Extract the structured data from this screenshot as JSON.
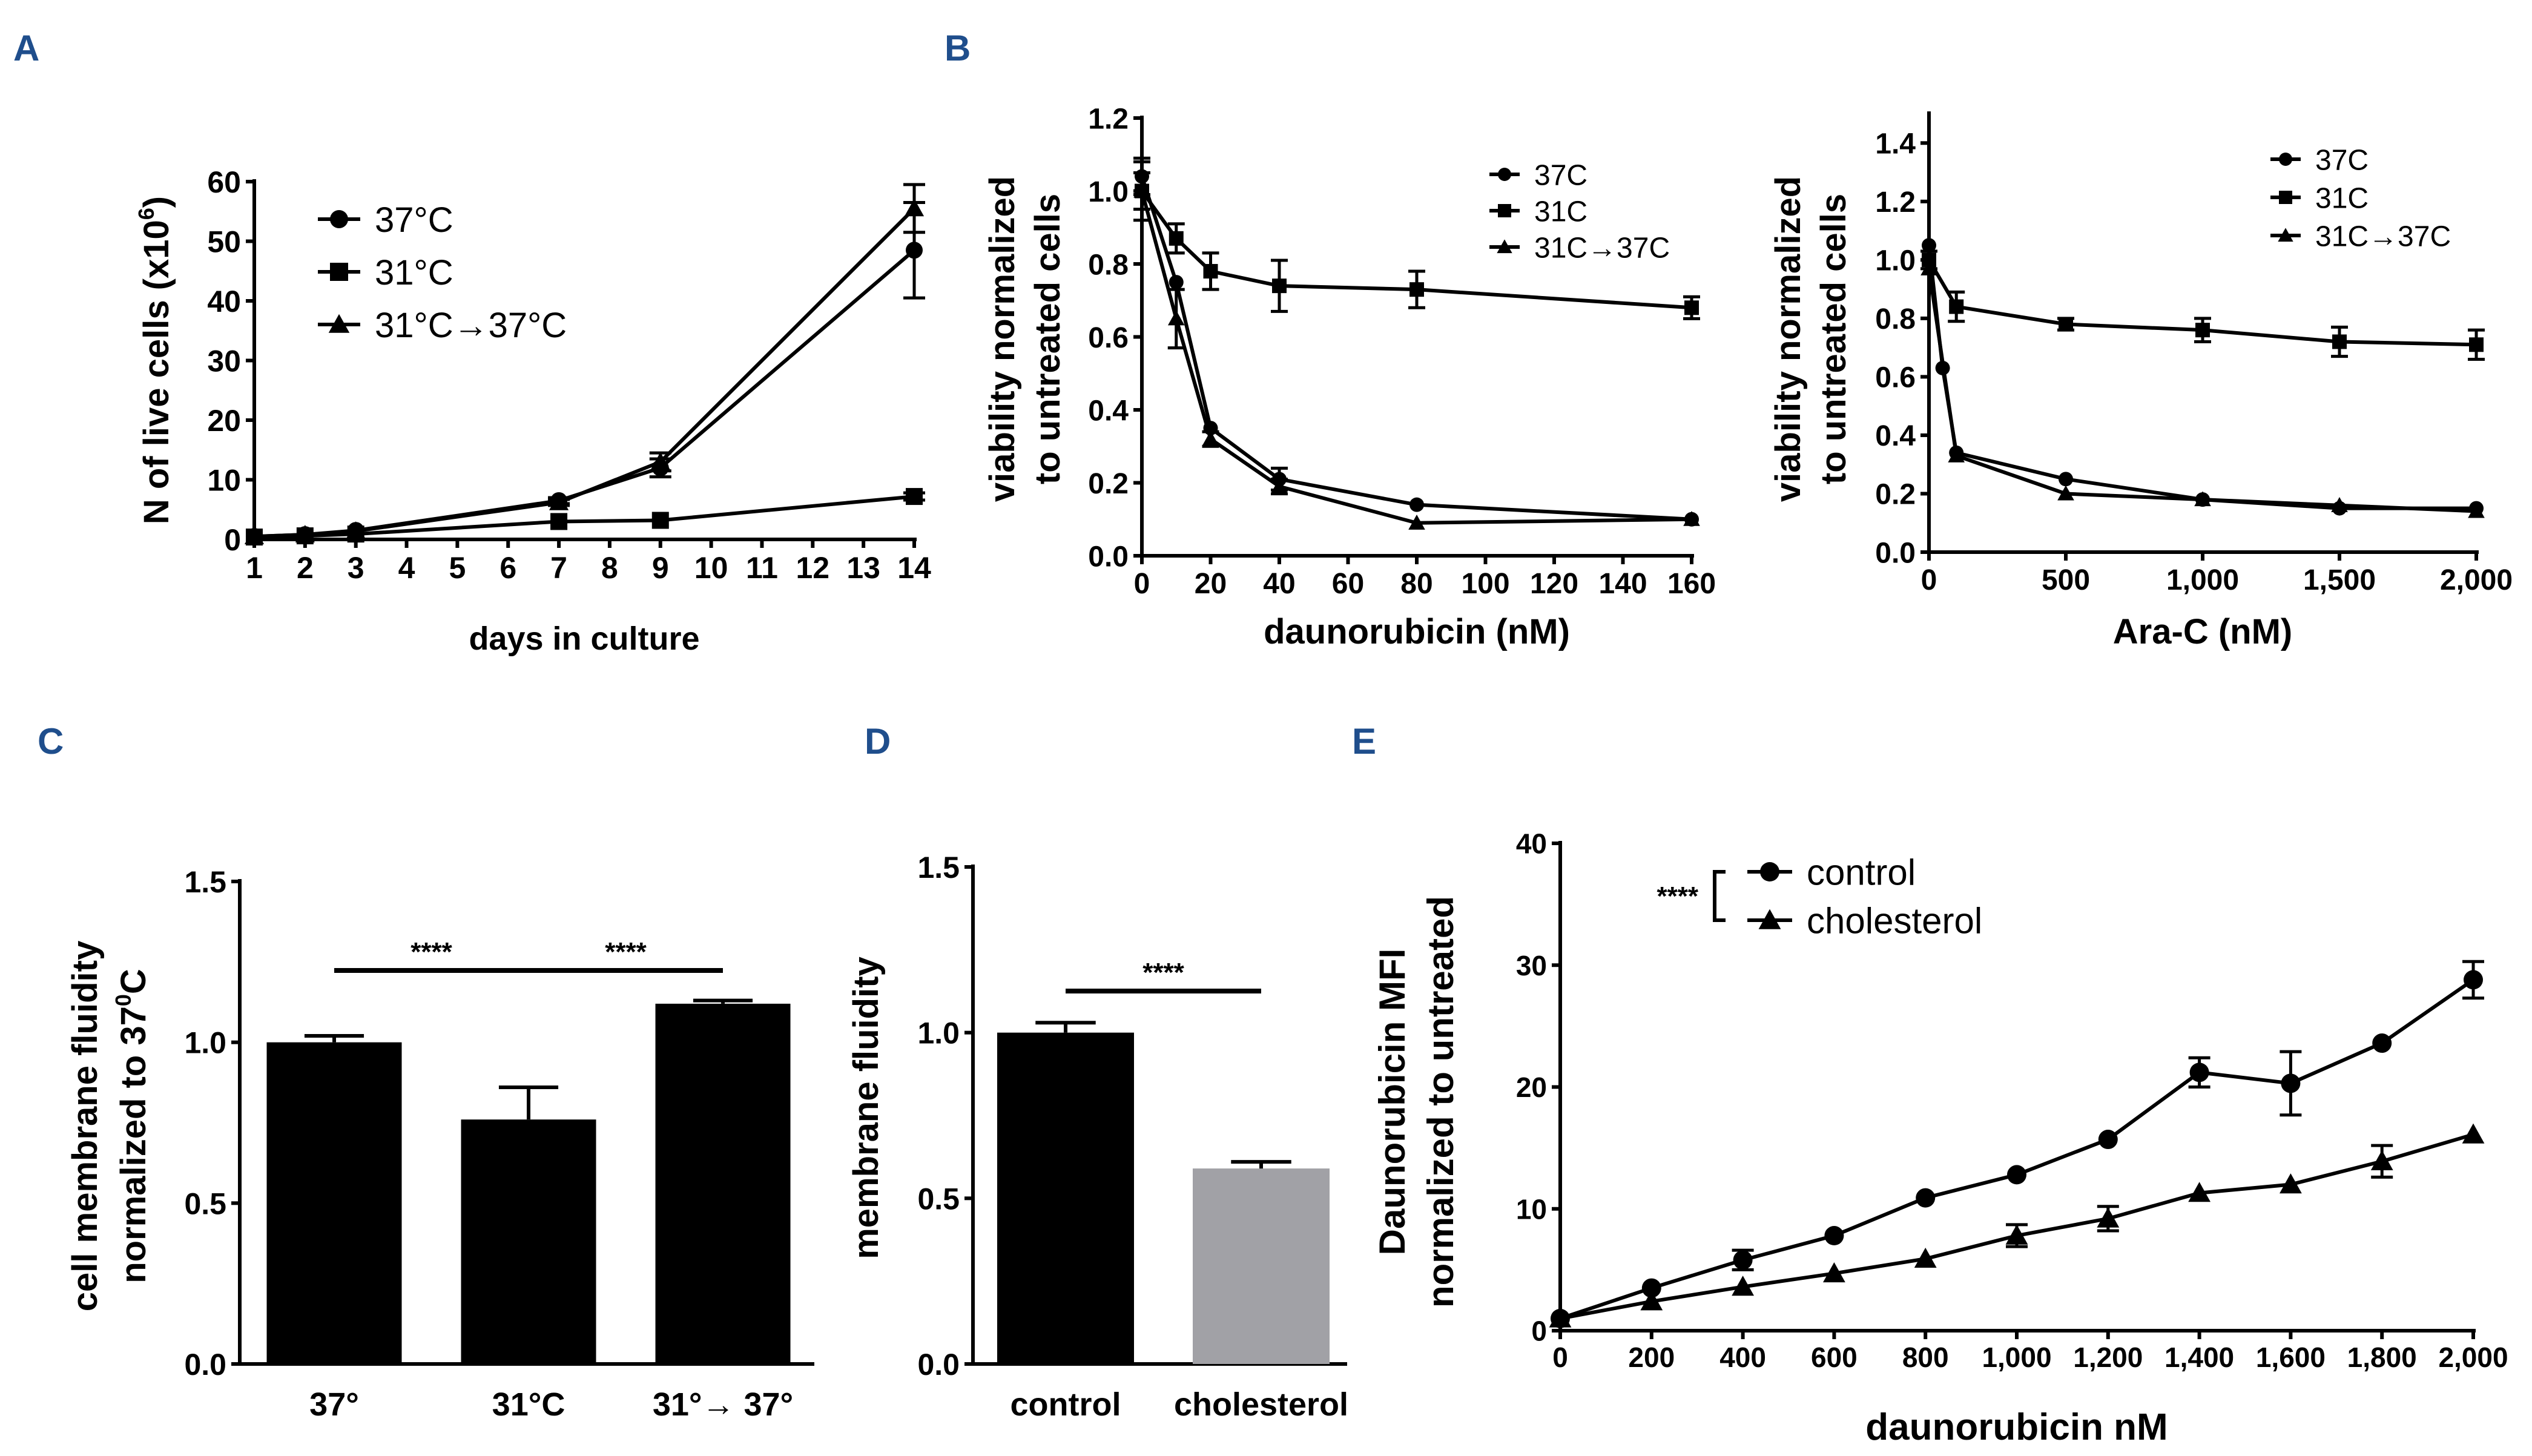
{
  "panel_letters": {
    "A": "A",
    "B": "B",
    "C": "C",
    "D": "D",
    "E": "E"
  },
  "colors": {
    "ink": "#000000",
    "panel_letter": "#1f4e8c",
    "grey_bar": "#a1a1a6"
  },
  "chart_data": [
    {
      "id": "A",
      "type": "line",
      "title": "",
      "xlabel": "days in culture",
      "ylabel": "N of live cells (x10",
      "ylabel_sup": "6",
      "ylabel_close": ")",
      "xlim": [
        1,
        14
      ],
      "ylim": [
        0,
        60
      ],
      "xticks": [
        "1",
        "2",
        "3",
        "4",
        "5",
        "6",
        "7",
        "8",
        "9",
        "10",
        "11",
        "12",
        "13",
        "14"
      ],
      "yticks": [
        "0",
        "10",
        "20",
        "30",
        "40",
        "50",
        "60"
      ],
      "legend_position": "top-left",
      "series": [
        {
          "name": "37°C",
          "marker": "circle",
          "x": [
            1,
            2,
            3,
            7,
            9,
            14
          ],
          "y": [
            0.5,
            0.8,
            1.5,
            6.5,
            12,
            48.5
          ],
          "err": [
            0,
            0,
            0,
            0.5,
            1.5,
            8
          ]
        },
        {
          "name": "31°C",
          "marker": "square",
          "x": [
            1,
            2,
            3,
            7,
            9,
            14
          ],
          "y": [
            0.4,
            0.6,
            0.9,
            3,
            3.2,
            7.2
          ],
          "err": [
            0,
            0,
            0,
            0,
            0,
            0.6
          ]
        },
        {
          "name": "31°C→37°C",
          "marker": "triangle",
          "x": [
            1,
            2,
            3,
            7,
            9,
            14
          ],
          "y": [
            0.5,
            0.8,
            1.4,
            6.2,
            13,
            55.5
          ],
          "err": [
            0,
            0,
            0,
            0.5,
            1.5,
            4
          ]
        }
      ]
    },
    {
      "id": "B1",
      "type": "line",
      "title": "",
      "xlabel": "daunorubicin (nM)",
      "ylabel_line1": "viability normalized",
      "ylabel_line2": "to untreated cells",
      "xlim": [
        0,
        160
      ],
      "ylim": [
        0,
        1.2
      ],
      "xticks": [
        "0",
        "20",
        "40",
        "60",
        "80",
        "100",
        "120",
        "140",
        "160"
      ],
      "yticks": [
        "0.0",
        "0.2",
        "0.4",
        "0.6",
        "0.8",
        "1.0",
        "1.2"
      ],
      "legend_position": "top-right",
      "series": [
        {
          "name": "37C",
          "marker": "circle",
          "x": [
            0,
            10,
            20,
            40,
            80,
            160
          ],
          "y": [
            1.04,
            0.75,
            0.35,
            0.21,
            0.14,
            0.1
          ],
          "err": [
            0.05,
            0,
            0,
            0.03,
            0,
            0
          ]
        },
        {
          "name": "31C",
          "marker": "square",
          "x": [
            0,
            10,
            20,
            40,
            80,
            160
          ],
          "y": [
            1.0,
            0.87,
            0.78,
            0.74,
            0.73,
            0.68
          ],
          "err": [
            0.08,
            0.04,
            0.05,
            0.07,
            0.05,
            0.03
          ]
        },
        {
          "name": "31C→37C",
          "marker": "triangle",
          "x": [
            0,
            10,
            20,
            40,
            80,
            160
          ],
          "y": [
            1.0,
            0.65,
            0.32,
            0.19,
            0.09,
            0.1
          ],
          "err": [
            0.05,
            0.08,
            0.02,
            0.02,
            0,
            0
          ]
        }
      ]
    },
    {
      "id": "B2",
      "type": "line",
      "title": "",
      "xlabel": "Ara-C (nM)",
      "ylabel_line1": "viability normalized",
      "ylabel_line2": "to untreated cells",
      "xlim": [
        0,
        2000
      ],
      "ylim": [
        0,
        1.5
      ],
      "xticks": [
        "0",
        "500",
        "1,000",
        "1,500",
        "2,000"
      ],
      "yticks": [
        "0.0",
        "0.2",
        "0.4",
        "0.6",
        "0.8",
        "1.0",
        "1.2",
        "1.4"
      ],
      "legend_position": "top-right",
      "series": [
        {
          "name": "37C",
          "marker": "circle",
          "x": [
            0,
            50,
            100,
            500,
            1000,
            1500,
            2000
          ],
          "y": [
            1.05,
            0.63,
            0.34,
            0.25,
            0.18,
            0.15,
            0.15
          ],
          "err": [
            0,
            0,
            0,
            0,
            0,
            0,
            0
          ]
        },
        {
          "name": "31C",
          "marker": "square",
          "x": [
            0,
            100,
            500,
            1000,
            1500,
            2000
          ],
          "y": [
            1.0,
            0.84,
            0.78,
            0.76,
            0.72,
            0.71
          ],
          "err": [
            0.03,
            0.05,
            0.02,
            0.04,
            0.05,
            0.05
          ]
        },
        {
          "name": "31C→37C",
          "marker": "triangle",
          "x": [
            0,
            100,
            500,
            1000,
            1500,
            2000
          ],
          "y": [
            0.97,
            0.33,
            0.2,
            0.18,
            0.16,
            0.14
          ],
          "err": [
            0,
            0,
            0,
            0,
            0,
            0
          ]
        }
      ]
    },
    {
      "id": "C",
      "type": "bar",
      "title": "",
      "xlabel": "",
      "ylabel_line1": "cell membrane fluidity",
      "ylabel_line2": "normalized to 37",
      "ylabel_sup": "0",
      "ylabel_tail": "C",
      "categories": [
        "37°",
        "31°C",
        "31°→ 37°"
      ],
      "values": [
        1.0,
        0.76,
        1.12
      ],
      "err": [
        0.02,
        0.1,
        0.01
      ],
      "ylim": [
        0,
        1.5
      ],
      "yticks": [
        "0.0",
        "0.5",
        "1.0",
        "1.5"
      ],
      "significance": [
        {
          "from": 0,
          "to": 1,
          "label": "****"
        },
        {
          "from": 1,
          "to": 2,
          "label": "****"
        }
      ]
    },
    {
      "id": "D",
      "type": "bar",
      "title": "",
      "xlabel": "",
      "ylabel": "membrane fluidity",
      "categories": [
        "control",
        "cholesterol"
      ],
      "values": [
        1.0,
        0.59
      ],
      "err": [
        0.03,
        0.02
      ],
      "bar_colors": [
        "#000000",
        "#a1a1a6"
      ],
      "ylim": [
        0,
        1.5
      ],
      "yticks": [
        "0.0",
        "0.5",
        "1.0",
        "1.5"
      ],
      "significance": [
        {
          "from": 0,
          "to": 1,
          "label": "****"
        }
      ]
    },
    {
      "id": "E",
      "type": "line",
      "title": "",
      "xlabel": "daunorubicin nM",
      "ylabel_line1": "Daunorubicin MFI",
      "ylabel_line2": "normalized to untreated",
      "xlim": [
        0,
        2000
      ],
      "ylim": [
        0,
        40
      ],
      "xticks": [
        "0",
        "200",
        "400",
        "600",
        "800",
        "1,000",
        "1,200",
        "1,400",
        "1,600",
        "1,800",
        "2,000"
      ],
      "yticks": [
        "0",
        "10",
        "20",
        "30",
        "40"
      ],
      "legend_position": "top-left",
      "significance_label": "****",
      "series": [
        {
          "name": "control",
          "marker": "circle",
          "x": [
            0,
            200,
            400,
            600,
            800,
            1000,
            1200,
            1400,
            1600,
            1800,
            2000
          ],
          "y": [
            1,
            3.5,
            5.8,
            7.8,
            10.9,
            12.8,
            15.7,
            21.2,
            20.3,
            23.6,
            28.8
          ],
          "err": [
            0,
            0,
            0.8,
            0,
            0,
            0,
            0,
            1.2,
            2.6,
            0,
            1.5
          ]
        },
        {
          "name": "cholesterol",
          "marker": "triangle",
          "x": [
            0,
            200,
            400,
            600,
            800,
            1000,
            1200,
            1400,
            1600,
            1800,
            2000
          ],
          "y": [
            1,
            2.4,
            3.6,
            4.7,
            5.9,
            7.8,
            9.2,
            11.3,
            12,
            13.9,
            16.1
          ],
          "err": [
            0,
            0,
            0,
            0,
            0,
            0.9,
            1,
            0,
            0,
            1.3,
            0
          ]
        }
      ]
    }
  ]
}
